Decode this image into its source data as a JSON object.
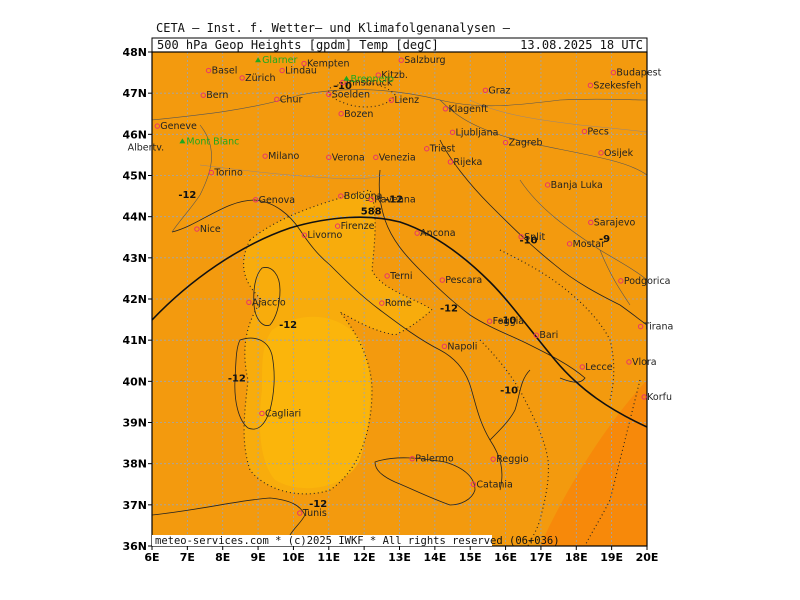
{
  "header": {
    "title": "CETA — Inst. f. Wetter— und Klimafolgenanalysen —",
    "product": "500 hPa Geop Heights [gpdm] Temp [degC]",
    "valid_time": "13.08.2025 18 UTC"
  },
  "footer": {
    "credit": "meteo-services.com * (c)2025 IWKF * All rights reserved (06+036)"
  },
  "colors": {
    "base": "#f39a0e",
    "warm_core": "#fbb10b",
    "east_deep": "#f7870a",
    "border": "#000000",
    "grid": "#9aa6b8",
    "city_marker": "#e8356b"
  },
  "axes": {
    "lat_labels": [
      "48N",
      "47N",
      "46N",
      "45N",
      "44N",
      "43N",
      "42N",
      "41N",
      "40N",
      "39N",
      "38N",
      "37N",
      "36N"
    ],
    "lon_labels": [
      "6E",
      "7E",
      "8E",
      "9E",
      "10E",
      "11E",
      "12E",
      "13E",
      "14E",
      "15E",
      "16E",
      "17E",
      "18E",
      "19E",
      "20E"
    ]
  },
  "contour_labels": [
    {
      "text": "588",
      "lon": 12.2,
      "lat": 44.05
    },
    {
      "text": "-12",
      "lon": 12.85,
      "lat": 44.35
    },
    {
      "text": "-12",
      "lon": 7.0,
      "lat": 44.45
    },
    {
      "text": "-10",
      "lon": 11.4,
      "lat": 47.1
    },
    {
      "text": "-10",
      "lon": 16.65,
      "lat": 43.35
    },
    {
      "text": "-9",
      "lon": 18.8,
      "lat": 43.38
    },
    {
      "text": "-12",
      "lon": 14.4,
      "lat": 41.7
    },
    {
      "text": "-12",
      "lon": 9.85,
      "lat": 41.3
    },
    {
      "text": "-10",
      "lon": 16.05,
      "lat": 41.4
    },
    {
      "text": "-12",
      "lon": 8.4,
      "lat": 40.0
    },
    {
      "text": "-10",
      "lon": 16.1,
      "lat": 39.7
    },
    {
      "text": "-12",
      "lon": 10.7,
      "lat": 36.95
    }
  ],
  "cities": [
    {
      "name": "Kempten",
      "lon": 10.3,
      "lat": 47.72
    },
    {
      "name": "Salzburg",
      "lon": 13.05,
      "lat": 47.8
    },
    {
      "name": "Basel",
      "lon": 7.6,
      "lat": 47.55
    },
    {
      "name": "Lindau",
      "lon": 9.68,
      "lat": 47.55
    },
    {
      "name": "Zürich",
      "lon": 8.55,
      "lat": 47.37
    },
    {
      "name": "Kitzb.",
      "lon": 12.4,
      "lat": 47.44
    },
    {
      "name": "Innsbruck",
      "lon": 11.4,
      "lat": 47.26
    },
    {
      "name": "Budapest",
      "lon": 19.05,
      "lat": 47.5
    },
    {
      "name": "Szekesfeh",
      "lon": 18.4,
      "lat": 47.19
    },
    {
      "name": "Bern",
      "lon": 7.45,
      "lat": 46.95
    },
    {
      "name": "Chur",
      "lon": 9.53,
      "lat": 46.85
    },
    {
      "name": "Soelden",
      "lon": 11.0,
      "lat": 46.97
    },
    {
      "name": "Lienz",
      "lon": 12.77,
      "lat": 46.83
    },
    {
      "name": "Graz",
      "lon": 15.43,
      "lat": 47.07
    },
    {
      "name": "Klagenft",
      "lon": 14.3,
      "lat": 46.62
    },
    {
      "name": "Bozen",
      "lon": 11.35,
      "lat": 46.5
    },
    {
      "name": "Ljubljana",
      "lon": 14.5,
      "lat": 46.05
    },
    {
      "name": "Geneve",
      "lon": 6.15,
      "lat": 46.2
    },
    {
      "name": "Pecs",
      "lon": 18.23,
      "lat": 46.07
    },
    {
      "name": "Triest",
      "lon": 13.77,
      "lat": 45.65
    },
    {
      "name": "Zagreb",
      "lon": 16.0,
      "lat": 45.8
    },
    {
      "name": "Milano",
      "lon": 9.2,
      "lat": 45.47
    },
    {
      "name": "Venezia",
      "lon": 12.33,
      "lat": 45.44
    },
    {
      "name": "Verona",
      "lon": 11.0,
      "lat": 45.44
    },
    {
      "name": "Rijeka",
      "lon": 14.44,
      "lat": 45.33
    },
    {
      "name": "Osijek",
      "lon": 18.7,
      "lat": 45.55
    },
    {
      "name": "Torino",
      "lon": 7.68,
      "lat": 45.07
    },
    {
      "name": "Banja Luka",
      "lon": 17.19,
      "lat": 44.77
    },
    {
      "name": "Bologna",
      "lon": 11.34,
      "lat": 44.5
    },
    {
      "name": "Genova",
      "lon": 8.93,
      "lat": 44.41
    },
    {
      "name": "Ravenna",
      "lon": 12.2,
      "lat": 44.42
    },
    {
      "name": "Nice",
      "lon": 7.27,
      "lat": 43.7
    },
    {
      "name": "Firenze",
      "lon": 11.25,
      "lat": 43.77
    },
    {
      "name": "Ancona",
      "lon": 13.5,
      "lat": 43.6
    },
    {
      "name": "Split",
      "lon": 16.44,
      "lat": 43.51
    },
    {
      "name": "Sarajevo",
      "lon": 18.41,
      "lat": 43.86
    },
    {
      "name": "Livorno",
      "lon": 10.31,
      "lat": 43.55
    },
    {
      "name": "Mostar",
      "lon": 17.81,
      "lat": 43.34
    },
    {
      "name": "Terni",
      "lon": 12.65,
      "lat": 42.56
    },
    {
      "name": "Podgorica",
      "lon": 19.26,
      "lat": 42.44
    },
    {
      "name": "Pescara",
      "lon": 14.21,
      "lat": 42.46
    },
    {
      "name": "Ajaccio",
      "lon": 8.74,
      "lat": 41.92
    },
    {
      "name": "Rome",
      "lon": 12.5,
      "lat": 41.9
    },
    {
      "name": "Tirana",
      "lon": 19.82,
      "lat": 41.33
    },
    {
      "name": "Foggia",
      "lon": 15.55,
      "lat": 41.46
    },
    {
      "name": "Bari",
      "lon": 16.87,
      "lat": 41.12
    },
    {
      "name": "Napoli",
      "lon": 14.27,
      "lat": 40.85
    },
    {
      "name": "Lecce",
      "lon": 18.17,
      "lat": 40.35
    },
    {
      "name": "Vlora",
      "lon": 19.49,
      "lat": 40.47
    },
    {
      "name": "Cagliari",
      "lon": 9.11,
      "lat": 39.22
    },
    {
      "name": "Korfu",
      "lon": 19.92,
      "lat": 39.62
    },
    {
      "name": "Reggio",
      "lon": 15.65,
      "lat": 38.11
    },
    {
      "name": "Palermo",
      "lon": 13.36,
      "lat": 38.12
    },
    {
      "name": "Catania",
      "lon": 15.09,
      "lat": 37.5
    },
    {
      "name": "Tunis",
      "lon": 10.18,
      "lat": 36.8
    }
  ],
  "mountains": [
    {
      "name": "Glarner",
      "lon": 9.0,
      "lat": 47.8
    },
    {
      "name": "Brennero",
      "lon": 11.5,
      "lat": 47.35
    },
    {
      "name": "Mont Blanc",
      "lon": 6.86,
      "lat": 45.83
    }
  ],
  "extra_labels": [
    {
      "name": "Albertv.",
      "lon": 6.4,
      "lat": 45.68
    }
  ]
}
